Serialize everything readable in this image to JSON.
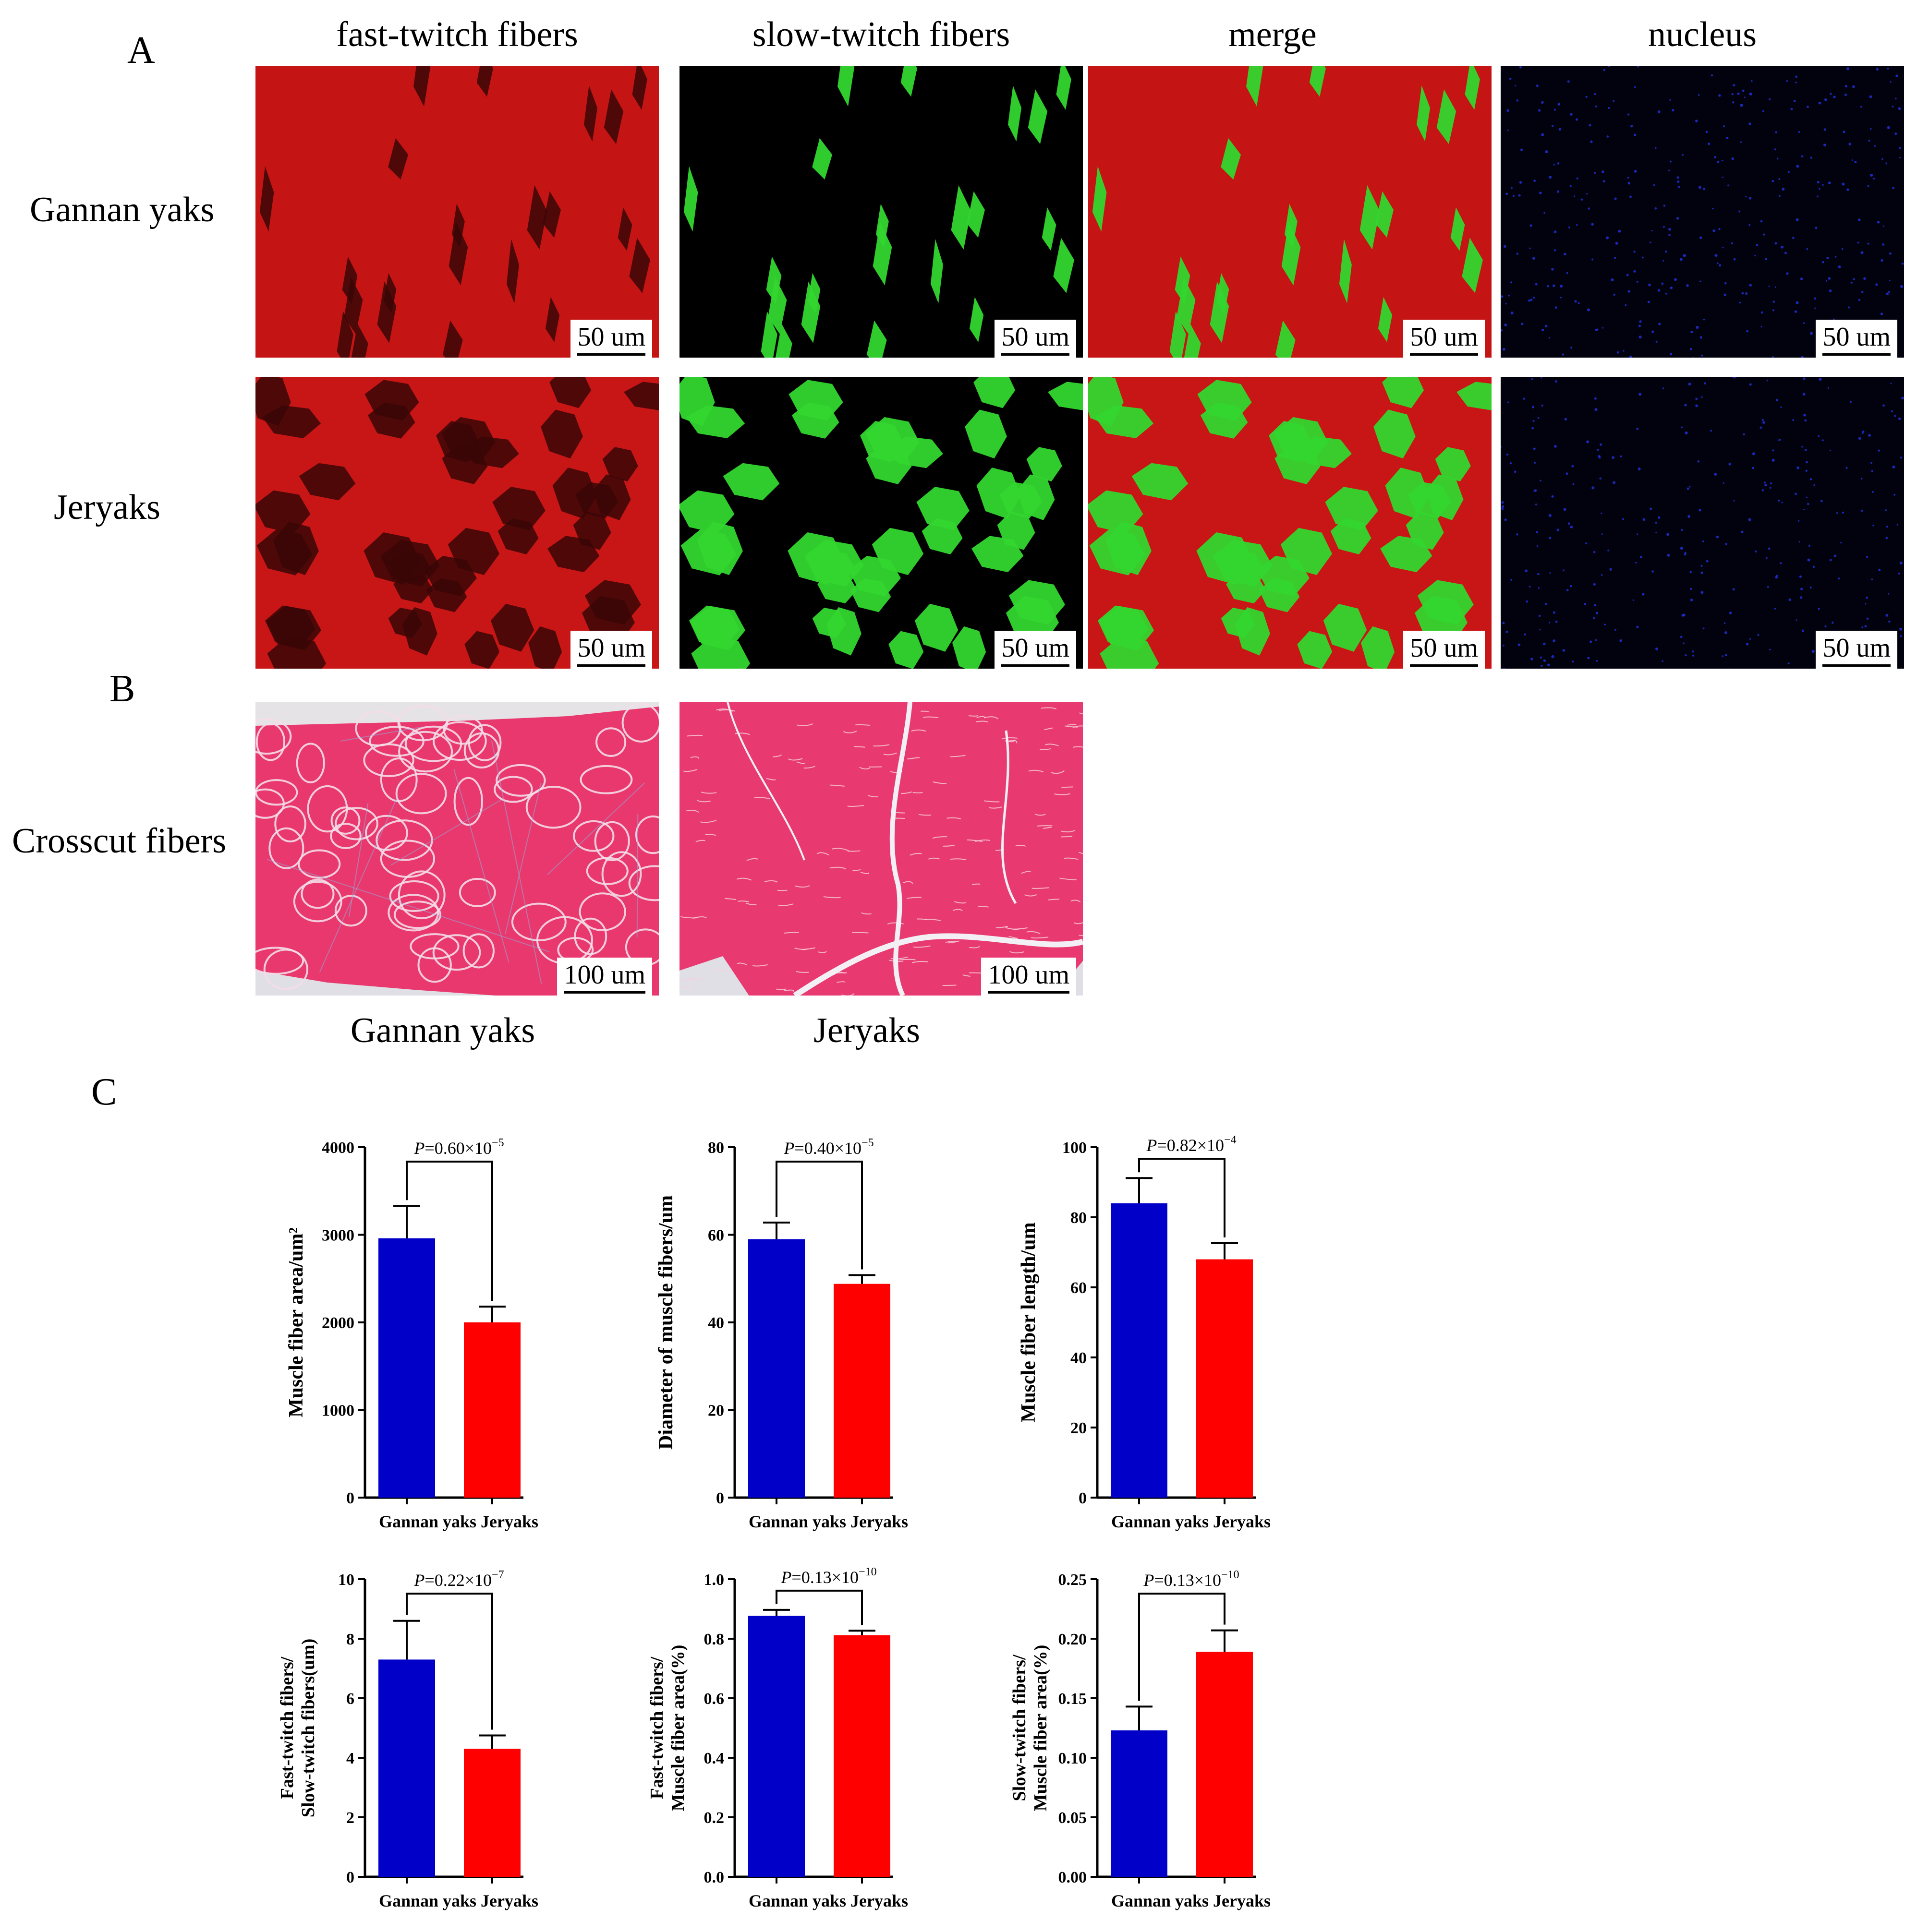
{
  "panels": {
    "a": "A",
    "b": "B",
    "c": "C"
  },
  "columns": [
    "fast-twitch fibers",
    "slow-twitch fibers",
    "merge",
    "nucleus"
  ],
  "rows": {
    "gannan": "Gannan yaks",
    "jeryaks": "Jeryaks",
    "crosscut": "Crosscut fibers"
  },
  "scale": {
    "s50": "50 um",
    "s100": "100 um"
  },
  "b_labels": [
    "Gannan yaks",
    "Jeryaks"
  ],
  "colors": {
    "gannan": "#0000c8",
    "jeryaks": "#ff0000",
    "fast": "#d81010",
    "slow": "#33d62e",
    "nucleus": "#1e30d8",
    "he": "#ea3a73"
  },
  "chart_data": [
    {
      "type": "bar",
      "categories": [
        "Gannan yaks",
        "Jeryaks"
      ],
      "values": [
        2960,
        2000
      ],
      "errors": [
        370,
        180
      ],
      "ylabel": "Muscle fiber area/um²",
      "ylim": [
        0,
        4000
      ],
      "ticks": [
        0,
        1000,
        2000,
        3000,
        4000
      ],
      "pvalue": {
        "p": "P",
        "rest": "=0.60×10",
        "exp": "−5"
      }
    },
    {
      "type": "bar",
      "categories": [
        "Gannan yaks",
        "Jeryaks"
      ],
      "values": [
        59,
        48.8
      ],
      "errors": [
        3.8,
        2.0
      ],
      "ylabel": "Diameter of muscle fibers/um",
      "ylim": [
        0,
        80
      ],
      "ticks": [
        0,
        20,
        40,
        60,
        80
      ],
      "pvalue": {
        "p": "P",
        "rest": "=0.40×10",
        "exp": "−5"
      }
    },
    {
      "type": "bar",
      "categories": [
        "Gannan yaks",
        "Jeryaks"
      ],
      "values": [
        84,
        68
      ],
      "errors": [
        7.2,
        4.6
      ],
      "ylabel": "Muscle fiber length/um",
      "ylim": [
        0,
        100
      ],
      "ticks": [
        0,
        20,
        40,
        60,
        80,
        100
      ],
      "pvalue": {
        "p": "P",
        "rest": "=0.82×10",
        "exp": "−4"
      }
    },
    {
      "type": "bar",
      "categories": [
        "Gannan yaks",
        "Jeryaks"
      ],
      "values": [
        7.3,
        4.3
      ],
      "errors": [
        1.3,
        0.45
      ],
      "ylabel": [
        "Fast-twitch fibers/",
        "Slow-twitch fibers(um)"
      ],
      "ylim": [
        0,
        10
      ],
      "ticks": [
        0,
        2,
        4,
        6,
        8,
        10
      ],
      "pvalue": {
        "p": "P",
        "rest": "=0.22×10",
        "exp": "−7"
      }
    },
    {
      "type": "bar",
      "categories": [
        "Gannan yaks",
        "Jeryaks"
      ],
      "values": [
        0.877,
        0.812
      ],
      "errors": [
        0.02,
        0.015
      ],
      "ylabel": [
        "Fast-twitch fibers/",
        "Muscle fiber area(%)"
      ],
      "ylim": [
        0,
        1.0
      ],
      "ticks": [
        "0.0",
        "0.2",
        "0.4",
        "0.6",
        "0.8",
        "1.0"
      ],
      "pvalue": {
        "p": "P",
        "rest": "=0.13×10",
        "exp": "−10"
      }
    },
    {
      "type": "bar",
      "categories": [
        "Gannan yaks",
        "Jeryaks"
      ],
      "values": [
        0.123,
        0.189
      ],
      "errors": [
        0.02,
        0.018
      ],
      "ylabel": [
        "Slow-twitch fibers/",
        "Muscle fiber area(%)"
      ],
      "ylim": [
        0,
        0.25
      ],
      "ticks": [
        "0.00",
        "0.05",
        "0.10",
        "0.15",
        "0.20",
        "0.25"
      ],
      "pvalue": {
        "p": "P",
        "rest": "=0.13×10",
        "exp": "−10"
      }
    }
  ]
}
